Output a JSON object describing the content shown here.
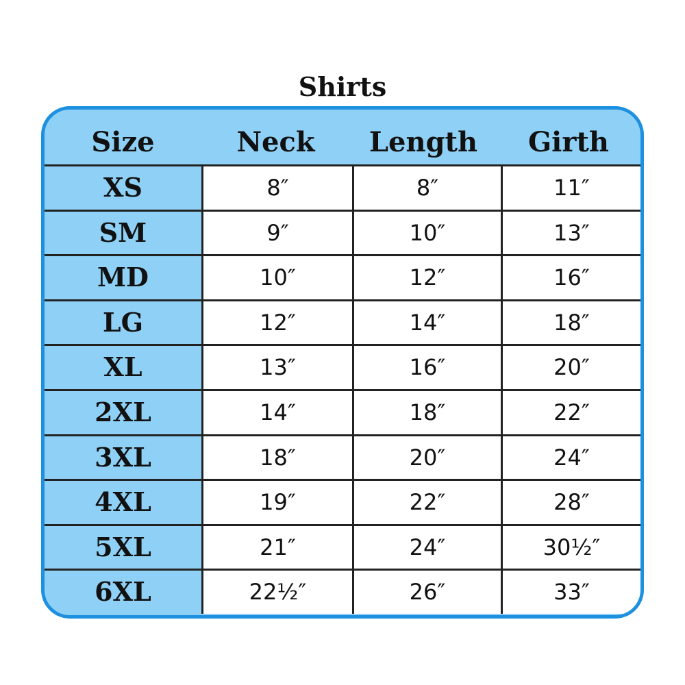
{
  "title": "Shirts",
  "colors": {
    "border": "#1e90e0",
    "fill": "#8fd1f6"
  },
  "headers": [
    "Size",
    "Neck",
    "Length",
    "Girth"
  ],
  "rows": [
    [
      "XS",
      "8″",
      "8″",
      "11″"
    ],
    [
      "SM",
      "9″",
      "10″",
      "13″"
    ],
    [
      "MD",
      "10″",
      "12″",
      "16″"
    ],
    [
      "LG",
      "12″",
      "14″",
      "18″"
    ],
    [
      "XL",
      "13″",
      "16″",
      "20″"
    ],
    [
      "2XL",
      "14″",
      "18″",
      "22″"
    ],
    [
      "3XL",
      "18″",
      "20″",
      "24″"
    ],
    [
      "4XL",
      "19″",
      "22″",
      "28″"
    ],
    [
      "5XL",
      "21″",
      "24″",
      "30½″"
    ],
    [
      "6XL",
      "22½″",
      "26″",
      "33″"
    ]
  ]
}
